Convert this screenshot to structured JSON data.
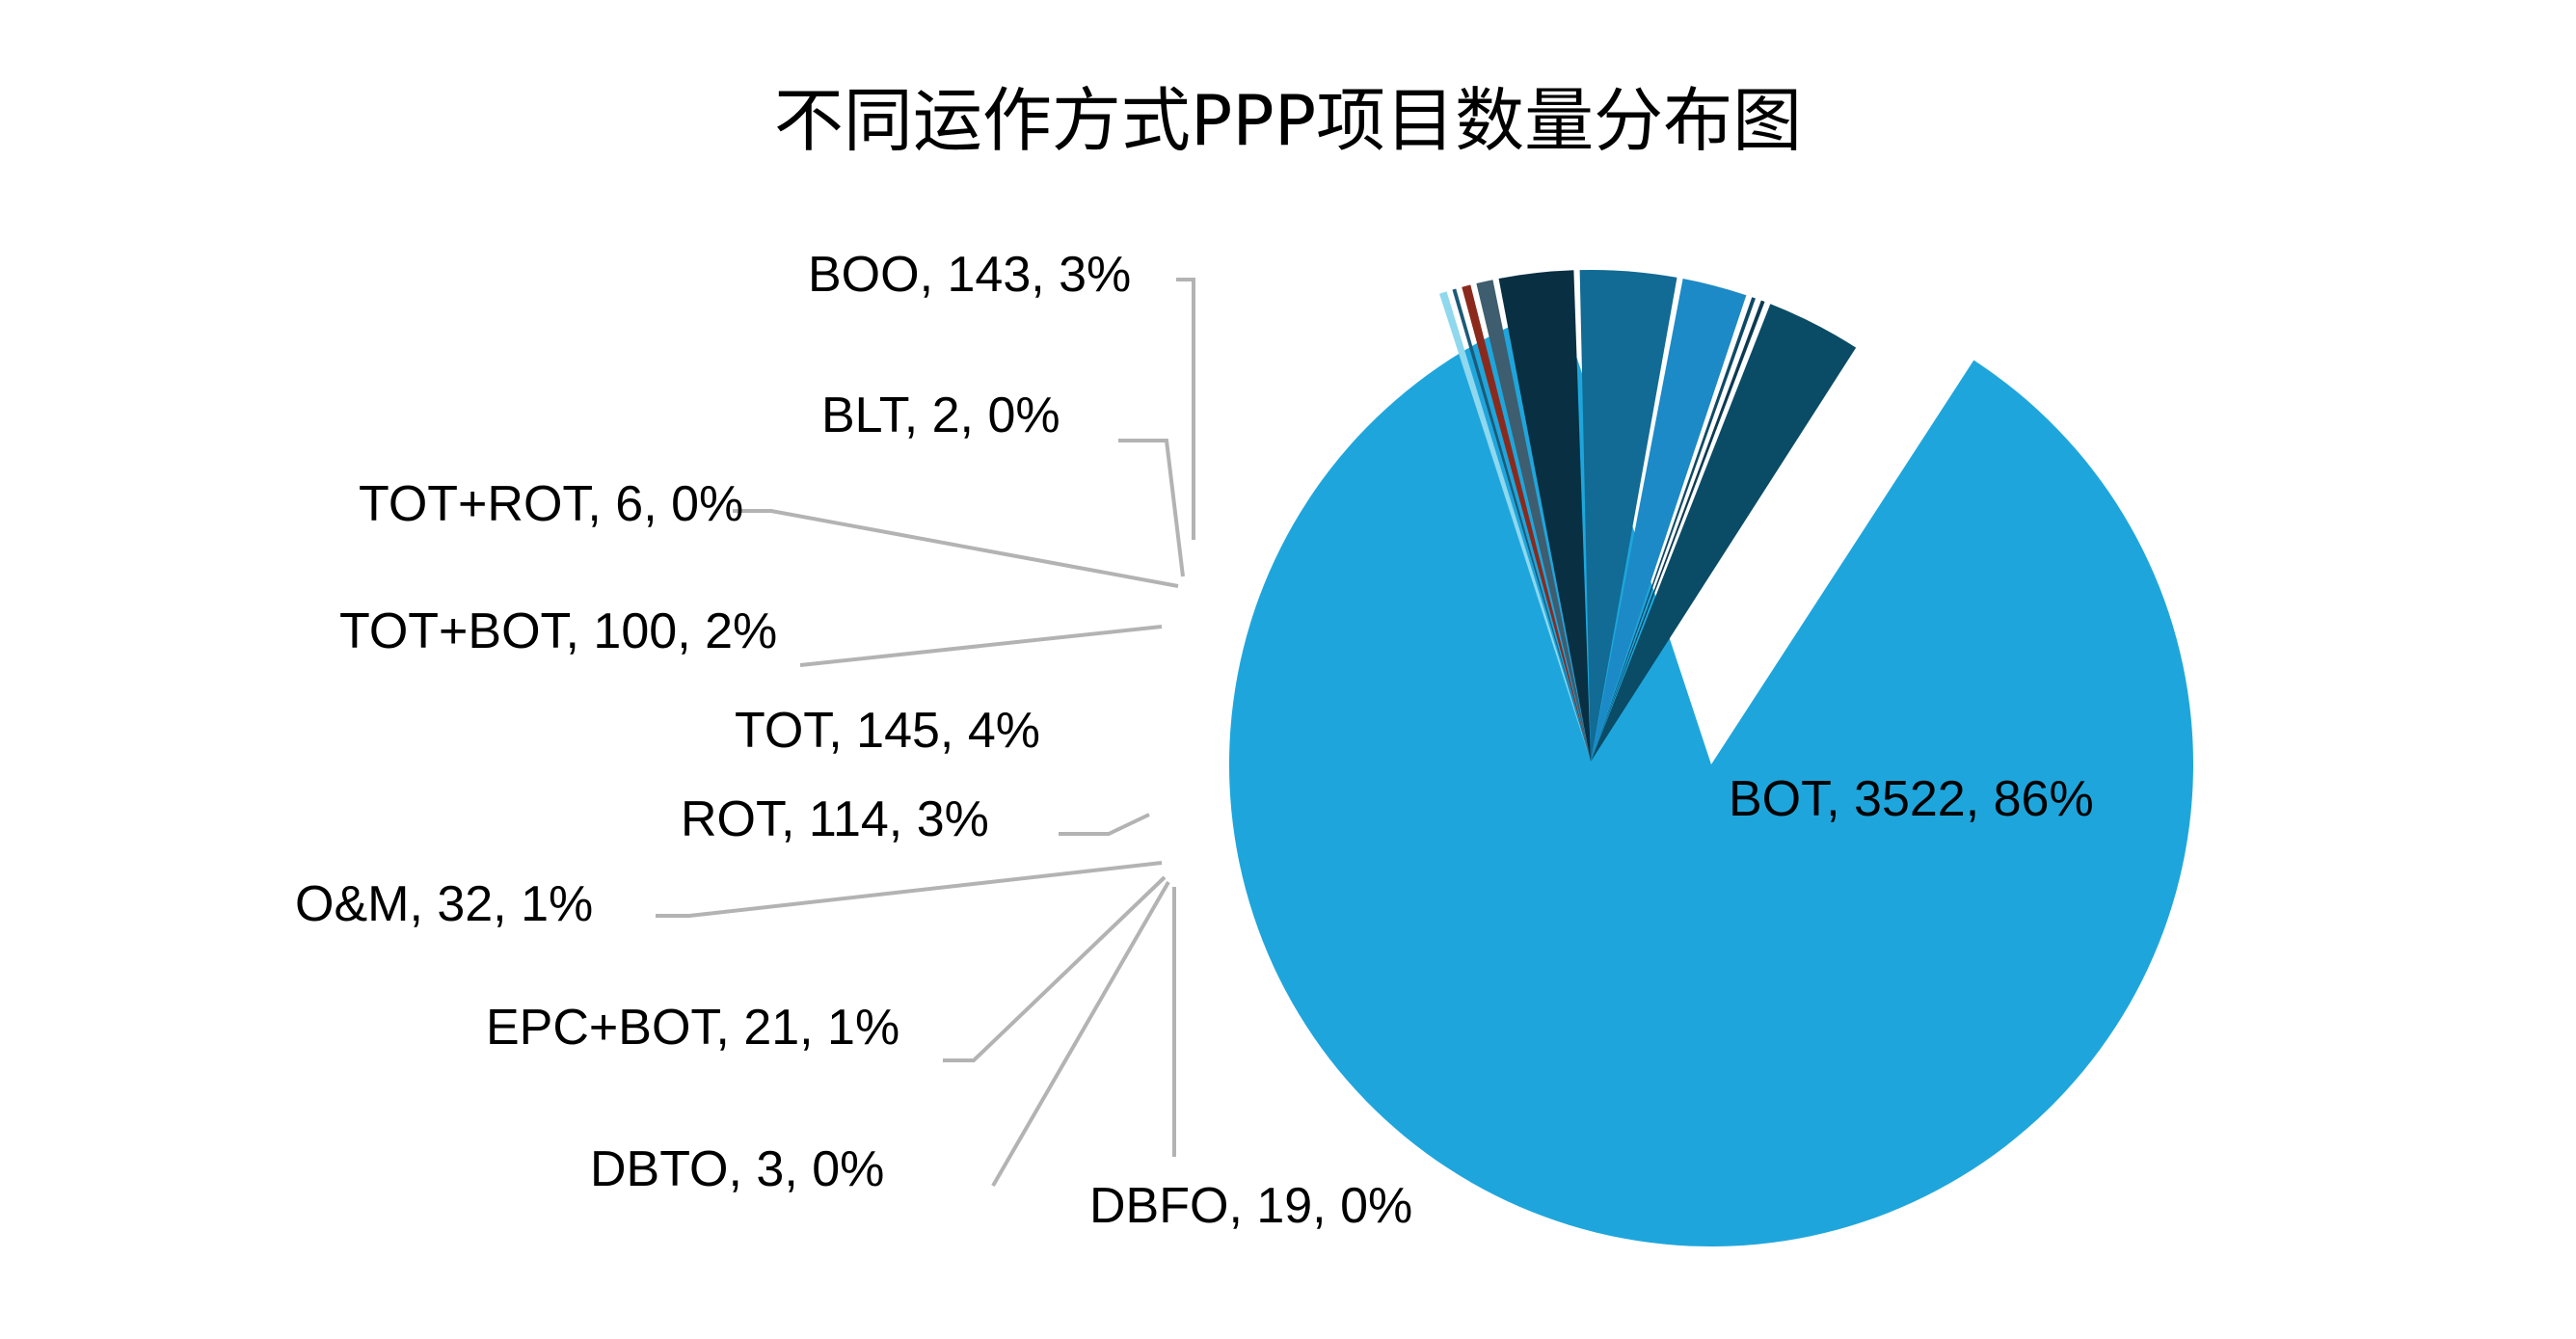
{
  "chart_data": {
    "type": "pie",
    "title": "不同运作方式PPP项目数量分布图",
    "legend": "none",
    "slices": [
      {
        "name": "BOT",
        "value": 3522,
        "percent_label": "86%",
        "color": "#1ea6dc"
      },
      {
        "name": "DBFO",
        "value": 19,
        "percent_label": "0%",
        "color": "#8fd8ee"
      },
      {
        "name": "DBTO",
        "value": 3,
        "percent_label": "0%",
        "color": "#1c5a78"
      },
      {
        "name": "EPC+BOT",
        "value": 21,
        "percent_label": "1%",
        "color": "#8b2a1c"
      },
      {
        "name": "O&M",
        "value": 32,
        "percent_label": "1%",
        "color": "#3e5d6e"
      },
      {
        "name": "ROT",
        "value": 114,
        "percent_label": "3%",
        "color": "#082f42"
      },
      {
        "name": "TOT",
        "value": 145,
        "percent_label": "4%",
        "color": "#116b94"
      },
      {
        "name": "TOT+BOT",
        "value": 100,
        "percent_label": "2%",
        "color": "#1c8ac6"
      },
      {
        "name": "TOT+ROT",
        "value": 6,
        "percent_label": "0%",
        "color": "#0e4a66"
      },
      {
        "name": "BLT",
        "value": 2,
        "percent_label": "0%",
        "color": "#0b3a52"
      },
      {
        "name": "BOO",
        "value": 143,
        "percent_label": "3%",
        "color": "#0a4b66"
      }
    ],
    "labels": [
      {
        "text": "BOT, 3522, 86%"
      },
      {
        "text": "DBFO, 19, 0%"
      },
      {
        "text": "DBTO, 3, 0%"
      },
      {
        "text": "EPC+BOT, 21, 1%"
      },
      {
        "text": "O&M, 32, 1%"
      },
      {
        "text": "ROT, 114, 3%"
      },
      {
        "text": "TOT, 145, 4%"
      },
      {
        "text": "TOT+BOT, 100, 2%"
      },
      {
        "text": "TOT+ROT, 6, 0%"
      },
      {
        "text": "BLT, 2, 0%"
      },
      {
        "text": "BOO, 143, 3%"
      }
    ]
  }
}
